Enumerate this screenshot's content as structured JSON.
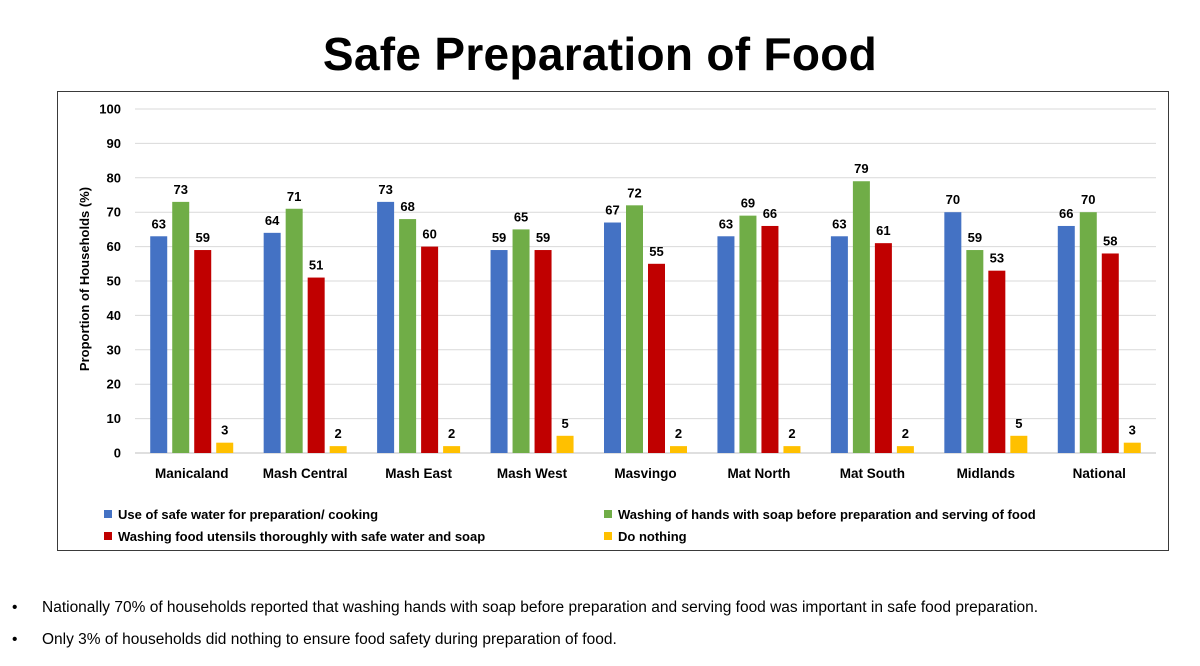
{
  "title": "Safe Preparation of Food",
  "chart_data": {
    "type": "bar",
    "title": "Safe Preparation of Food",
    "xlabel": "",
    "ylabel": "Proportion of Households (%)",
    "ylim": [
      0,
      100
    ],
    "yticks": [
      0,
      10,
      20,
      30,
      40,
      50,
      60,
      70,
      80,
      90,
      100
    ],
    "grid": true,
    "legend_position": "bottom",
    "categories": [
      "Manicaland",
      "Mash Central",
      "Mash East",
      "Mash West",
      "Masvingo",
      "Mat North",
      "Mat South",
      "Midlands",
      "National"
    ],
    "series": [
      {
        "name": "Use of safe water for preparation/ cooking",
        "color": "#4472c4",
        "values": [
          63,
          64,
          73,
          59,
          67,
          63,
          63,
          70,
          66
        ]
      },
      {
        "name": "Washing of hands with soap before preparation and serving of food",
        "color": "#70ad47",
        "values": [
          73,
          71,
          68,
          65,
          72,
          69,
          79,
          59,
          70
        ]
      },
      {
        "name": "Washing food utensils thoroughly with safe water and soap",
        "color": "#c00000",
        "values": [
          59,
          51,
          60,
          59,
          55,
          66,
          61,
          53,
          58
        ]
      },
      {
        "name": "Do nothing",
        "color": "#ffc000",
        "values": [
          3,
          2,
          2,
          5,
          2,
          2,
          2,
          5,
          3
        ]
      }
    ]
  },
  "bullets": [
    "Nationally 70% of households reported that washing hands with soap before preparation and serving food was important in safe food preparation.",
    "Only 3% of households did nothing to ensure food safety during preparation of food."
  ]
}
